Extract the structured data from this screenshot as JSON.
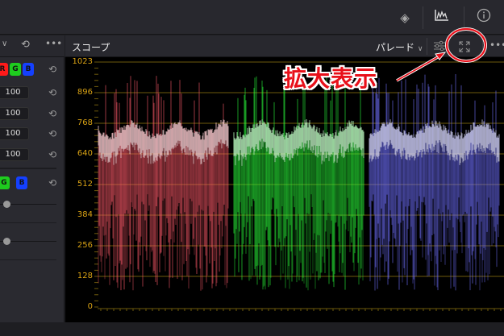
{
  "topbar": {
    "icons": [
      "color-match-icon",
      "scopes-icon",
      "info-icon"
    ]
  },
  "left_panel": {
    "channels": [
      "R",
      "G",
      "B"
    ],
    "values": [
      "100",
      "100",
      "100",
      "100"
    ],
    "channel_colors": {
      "R": "#ff1a1a",
      "G": "#1ecc1e",
      "B": "#1440ff"
    }
  },
  "scope": {
    "title": "スコープ",
    "mode": "パレード",
    "scale_labels": [
      "1023",
      "896",
      "768",
      "640",
      "512",
      "384",
      "256",
      "128",
      "0"
    ],
    "graticule_color": "#d9a214",
    "parade_colors": [
      "#ff5a6a",
      "#2aff3a",
      "#7070ff"
    ]
  },
  "annotation": {
    "text": "拡大表示",
    "color": "#e8101a",
    "target": "expand-button"
  }
}
